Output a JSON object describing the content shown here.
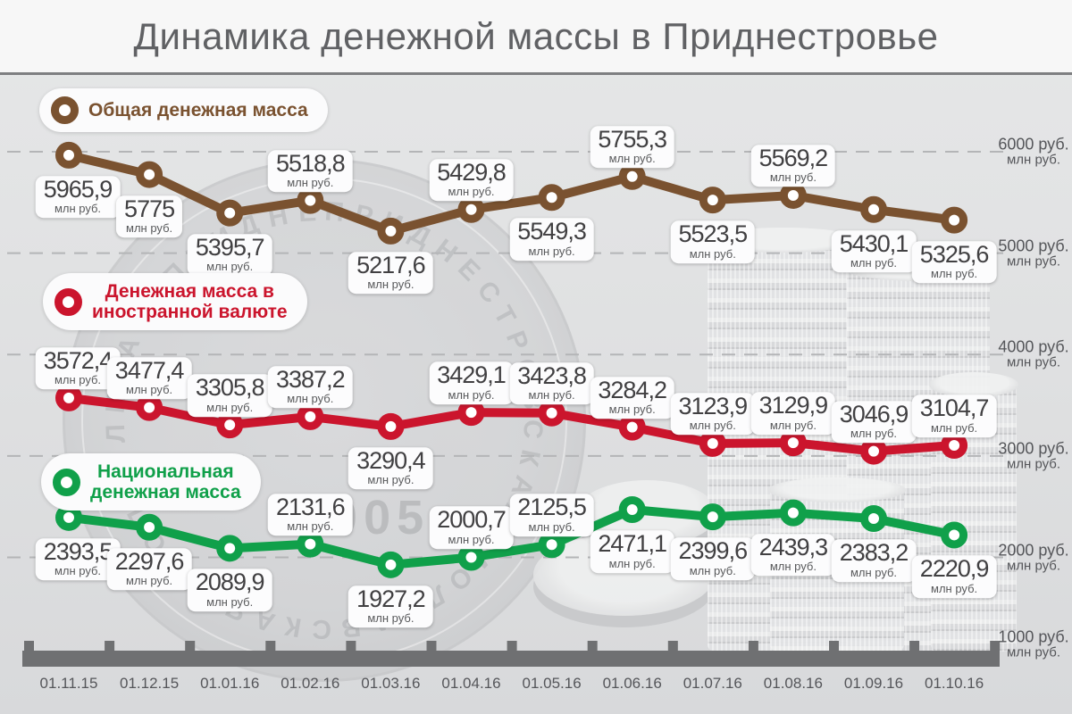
{
  "title": "Динамика денежной массы в Приднестровье",
  "unit": "млн руб.",
  "colors": {
    "total": "#7a5230",
    "foreign": "#cb152d",
    "national": "#10a04a",
    "axis": "#6f7072",
    "grid": "#b4b5b7",
    "value_text": "#414042",
    "axis_text": "#55565a",
    "header_bg": "#f7f7f7",
    "chart_bg": "#e0e1e2",
    "title_text": "#606164"
  },
  "legend": [
    {
      "id": "total",
      "line1": "Общая денежная масса",
      "line2": "",
      "color": "#7a5230"
    },
    {
      "id": "foreign",
      "line1": "Денежная масса в",
      "line2": "иностранной валюте",
      "color": "#cb152d"
    },
    {
      "id": "national",
      "line1": "Национальная",
      "line2": "денежная масса",
      "color": "#10a04a"
    }
  ],
  "watermark": {
    "year_text": "2005",
    "rim_text": "ПРИДНЕСТРОВСКАЯ МОЛДАВСКАЯ РЕСПУБЛИКА"
  },
  "x_axis": {
    "labels": [
      "01.11.15",
      "01.12.15",
      "01.01.16",
      "01.02.16",
      "01.03.16",
      "01.04.16",
      "01.05.16",
      "01.06.16",
      "01.07.16",
      "01.08.16",
      "01.09.16",
      "01.10.16"
    ]
  },
  "y_axis": {
    "ticks": [
      {
        "value": 6000,
        "label": "6000 руб.",
        "sub": "млн руб."
      },
      {
        "value": 5000,
        "label": "5000 руб.",
        "sub": "млн руб."
      },
      {
        "value": 4000,
        "label": "4000 руб.",
        "sub": "млн руб."
      },
      {
        "value": 3000,
        "label": "3000 руб.",
        "sub": "млн руб."
      },
      {
        "value": 2000,
        "label": "2000 руб.",
        "sub": "млн руб."
      },
      {
        "value": 1000,
        "label": "1000 руб.",
        "sub": "млн руб."
      }
    ]
  },
  "chart_data": {
    "type": "line",
    "title": "Динамика денежной массы в Приднестровье",
    "categories": [
      "01.11.15",
      "01.12.15",
      "01.01.16",
      "01.02.16",
      "01.03.16",
      "01.04.16",
      "01.05.16",
      "01.06.16",
      "01.07.16",
      "01.08.16",
      "01.09.16",
      "01.10.16"
    ],
    "ylim": [
      1000,
      6000
    ],
    "grid": "dashed-horizontal",
    "unit": "млн руб.",
    "legend_position": "left-inline",
    "series": [
      {
        "name": "Общая денежная масса",
        "color": "#7a5230",
        "values": [
          5965.9,
          5775,
          5395.7,
          5518.8,
          5217.6,
          5429.8,
          5549.3,
          5755.3,
          5523.5,
          5569.2,
          5430.1,
          5325.6
        ],
        "labels": [
          "5965,9",
          "5775",
          "5395,7",
          "5518,8",
          "5217,6",
          "5429,8",
          "5549,3",
          "5755,3",
          "5523,5",
          "5569,2",
          "5430,1",
          "5325,6"
        ],
        "label_side": [
          "b",
          "b",
          "b",
          "a",
          "b",
          "a",
          "b",
          "a",
          "b",
          "a",
          "b",
          "b"
        ]
      },
      {
        "name": "Денежная масса в иностранной валюте",
        "color": "#cb152d",
        "values": [
          3572.4,
          3477.4,
          3305.8,
          3387.2,
          3290.4,
          3429.1,
          3423.8,
          3284.2,
          3123.9,
          3129.9,
          3046.9,
          3104.7
        ],
        "labels": [
          "3572,4",
          "3477,4",
          "3305,8",
          "3387,2",
          "3290,4",
          "3429,1",
          "3423,8",
          "3284,2",
          "3123,9",
          "3129,9",
          "3046,9",
          "3104,7"
        ],
        "label_side": [
          "a",
          "a",
          "a",
          "a",
          "b",
          "a",
          "a",
          "a",
          "a",
          "a",
          "a",
          "a"
        ]
      },
      {
        "name": "Национальная денежная масса",
        "color": "#10a04a",
        "values": [
          2393.5,
          2297.6,
          2089.9,
          2131.6,
          1927.2,
          2000.7,
          2125.5,
          2471.1,
          2399.6,
          2439.3,
          2383.2,
          2220.9
        ],
        "labels": [
          "2393,5",
          "2297,6",
          "2089,9",
          "2131,6",
          "1927,2",
          "2000,7",
          "2125,5",
          "2471,1",
          "2399,6",
          "2439,3",
          "2383,2",
          "2220,9"
        ],
        "label_side": [
          "b",
          "b",
          "b",
          "a",
          "b",
          "a",
          "a",
          "b",
          "b",
          "b",
          "b",
          "b"
        ]
      }
    ]
  }
}
